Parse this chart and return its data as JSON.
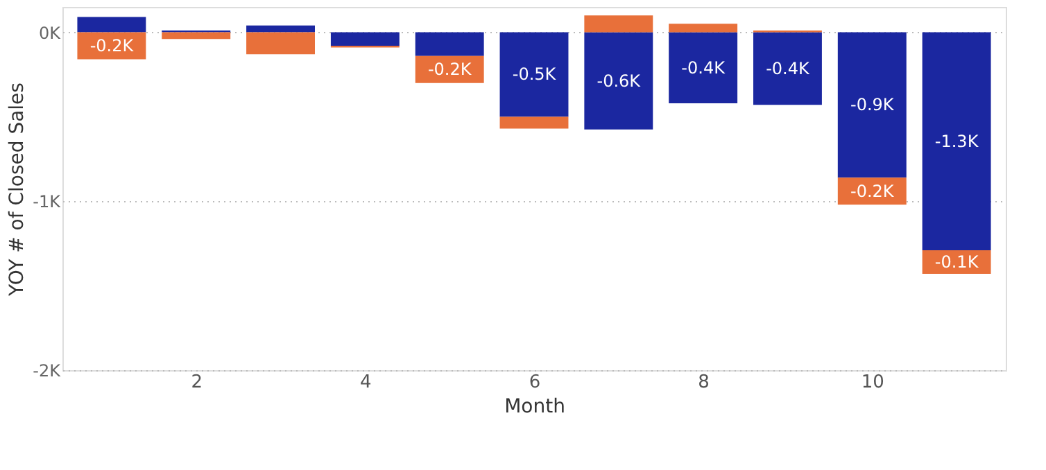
{
  "chart_data": {
    "type": "bar",
    "stacked": true,
    "xlabel": "Month",
    "ylabel": "YOY # of Closed Sales",
    "x": [
      1,
      2,
      3,
      4,
      5,
      6,
      7,
      8,
      9,
      10,
      11
    ],
    "series": [
      {
        "color": "#1b27a0",
        "values": [
          90,
          10,
          40,
          -80,
          -140,
          -500,
          -575,
          -420,
          -430,
          -860,
          -1290
        ],
        "value_labels": [
          null,
          null,
          null,
          null,
          null,
          "-0.5K",
          "-0.6K",
          "-0.4K",
          "-0.4K",
          "-0.9K",
          "-1.3K"
        ]
      },
      {
        "color": "#e8703a",
        "values": [
          -160,
          -40,
          -130,
          -10,
          -160,
          -70,
          100,
          50,
          10,
          -160,
          -140
        ],
        "value_labels": [
          "-0.2K",
          null,
          null,
          null,
          "-0.2K",
          null,
          null,
          null,
          null,
          "-0.2K",
          "-0.1K"
        ]
      }
    ],
    "xlim": [
      0.5,
      11.5
    ],
    "xticks": [
      2,
      4,
      6,
      8,
      10
    ],
    "ylim": [
      -2000,
      150
    ],
    "yticks": [
      {
        "value": -2000,
        "label": "-2K"
      },
      {
        "value": -1000,
        "label": "-1K"
      },
      {
        "value": 0,
        "label": "0K"
      }
    ],
    "grid": "y",
    "legend": false
  }
}
